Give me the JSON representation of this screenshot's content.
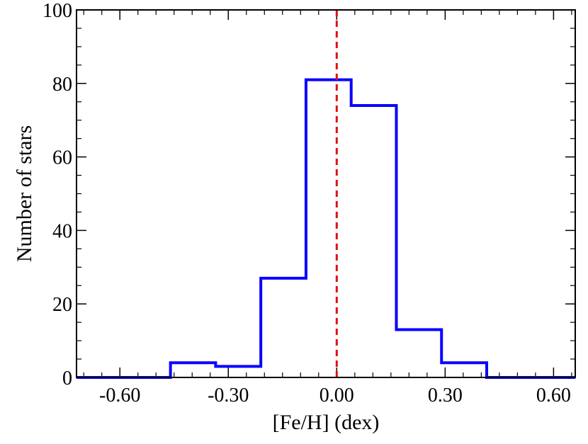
{
  "chart_data": {
    "type": "histogram",
    "title": "",
    "xlabel": "[Fe/H] (dex)",
    "ylabel": "Number of stars",
    "xlim": [
      -0.72,
      0.66
    ],
    "ylim": [
      0,
      100
    ],
    "x_ticks": [
      -0.6,
      -0.3,
      0.0,
      0.3,
      0.6
    ],
    "x_tick_labels": [
      "-0.60",
      "-0.30",
      "0.00",
      "0.30",
      "0.60"
    ],
    "y_ticks": [
      0,
      20,
      40,
      60,
      80,
      100
    ],
    "y_tick_labels": [
      "0",
      "20",
      "40",
      "60",
      "80",
      "100"
    ],
    "bin_edges": [
      -0.72,
      -0.46,
      -0.335,
      -0.21,
      -0.085,
      0.04,
      0.165,
      0.29,
      0.415,
      0.66
    ],
    "counts": [
      0,
      4,
      3,
      27,
      81,
      74,
      13,
      4,
      0
    ],
    "reference_line": {
      "x": 0.0,
      "style": "dashed",
      "color": "#e01010"
    },
    "colors": {
      "histogram": "#0a00ff",
      "axes": "#000000"
    },
    "grid": false
  }
}
